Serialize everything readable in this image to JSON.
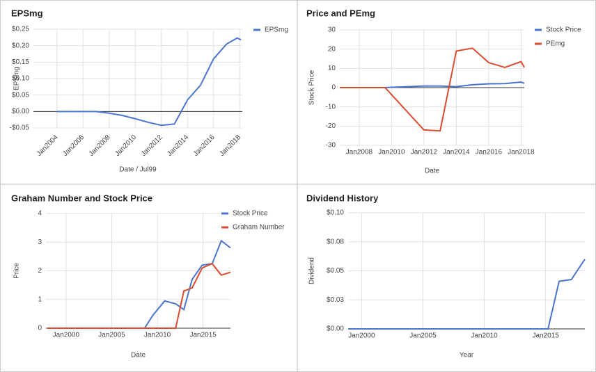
{
  "chart_data": [
    {
      "type": "line",
      "title": "EPSmg",
      "x_label": "Date / Jul99",
      "y_label": "EPSmg",
      "x": [
        2004,
        2005,
        2006,
        2007,
        2008,
        2009,
        2010,
        2011,
        2012,
        2013,
        2014,
        2015,
        2016,
        2017,
        2017.8,
        2018.1
      ],
      "series": [
        {
          "name": "EPSmg",
          "color": "#4a74d0",
          "values": [
            0,
            0,
            0,
            0,
            -0.005,
            -0.012,
            -0.022,
            -0.033,
            -0.042,
            -0.038,
            0.035,
            0.08,
            0.16,
            0.205,
            0.223,
            0.218
          ]
        }
      ],
      "xlim": [
        2002.2,
        2018.2
      ],
      "ylim": [
        -0.05,
        0.25
      ],
      "xticks": [
        {
          "value": 2004,
          "label": "Jan2004"
        },
        {
          "value": 2006,
          "label": "Jan2006"
        },
        {
          "value": 2008,
          "label": "Jan2008"
        },
        {
          "value": 2010,
          "label": "Jan2010"
        },
        {
          "value": 2012,
          "label": "Jan2012"
        },
        {
          "value": 2014,
          "label": "Jan2014"
        },
        {
          "value": 2016,
          "label": "Jan2016"
        },
        {
          "value": 2018,
          "label": "Jan2018"
        }
      ],
      "yticks": [
        {
          "value": -0.05,
          "label": "-$0.05"
        },
        {
          "value": 0,
          "label": "$0.00"
        },
        {
          "value": 0.05,
          "label": "$0.05"
        },
        {
          "value": 0.1,
          "label": "$0.10"
        },
        {
          "value": 0.15,
          "label": "$0.15"
        },
        {
          "value": 0.2,
          "label": "$0.20"
        },
        {
          "value": 0.25,
          "label": "$0.25"
        }
      ],
      "grid": true,
      "legend": "right"
    },
    {
      "type": "line",
      "title": "Price and PEmg",
      "x_label": "Date",
      "y_label": "Stock Price",
      "x": [
        2006.8,
        2008,
        2009,
        2009.6,
        2012,
        2013,
        2014,
        2015,
        2016,
        2017,
        2018,
        2018.2
      ],
      "series": [
        {
          "name": "Stock Price",
          "color": "#4a74d0",
          "values": [
            0,
            0,
            0,
            0.05,
            0.8,
            0.8,
            0.5,
            1.5,
            2,
            2.1,
            2.9,
            2.2
          ]
        },
        {
          "name": "PEmg",
          "color": "#db4b2e",
          "values": [
            0,
            0,
            0,
            0,
            -22,
            -22.5,
            19,
            20.5,
            13,
            10.5,
            13.5,
            10.5
          ]
        }
      ],
      "xlim": [
        2006.8,
        2018.2
      ],
      "ylim": [
        -30,
        30
      ],
      "xticks": [
        {
          "value": 2008,
          "label": "Jan2008"
        },
        {
          "value": 2010,
          "label": "Jan2010"
        },
        {
          "value": 2012,
          "label": "Jan2012"
        },
        {
          "value": 2014,
          "label": "Jan2014"
        },
        {
          "value": 2016,
          "label": "Jan2016"
        },
        {
          "value": 2018,
          "label": "Jan2018"
        }
      ],
      "yticks": [
        -30,
        -20,
        -10,
        0,
        10,
        20,
        30
      ],
      "grid": true,
      "legend": "right"
    },
    {
      "type": "line",
      "title": "Graham Number and Stock Price",
      "x_label": "Date",
      "y_label": "Price",
      "x": [
        1998,
        2008.6,
        2009.5,
        2010.8,
        2012,
        2012.9,
        2013.8,
        2014.9,
        2016,
        2017,
        2018
      ],
      "series": [
        {
          "name": "Stock Price",
          "color": "#4a74d0",
          "values": [
            0,
            0,
            0.45,
            0.95,
            0.85,
            0.65,
            1.7,
            2.2,
            2.25,
            3.05,
            2.8
          ]
        },
        {
          "name": "Graham Number",
          "color": "#db4b2e",
          "values": [
            0,
            0,
            0,
            0,
            0,
            1.3,
            1.4,
            2.1,
            2.25,
            1.85,
            1.95
          ]
        }
      ],
      "xlim": [
        1997.8,
        2018
      ],
      "ylim": [
        0,
        4
      ],
      "xticks": [
        {
          "value": 2000,
          "label": "Jan2000"
        },
        {
          "value": 2005,
          "label": "Jan2005"
        },
        {
          "value": 2010,
          "label": "Jan2010"
        },
        {
          "value": 2015,
          "label": "Jan2015"
        }
      ],
      "yticks": [
        0,
        1,
        2,
        3,
        4
      ],
      "grid": true,
      "legend": "right"
    },
    {
      "type": "line",
      "title": "Dividend History",
      "x_label": "Year",
      "y_label": "Dividend",
      "x": [
        1998.9,
        2015.2,
        2016.1,
        2017.1,
        2018.2
      ],
      "series": [
        {
          "name": "Dividend",
          "color": "#4a74d0",
          "values": [
            0,
            0,
            0.041,
            0.0425,
            0.06
          ]
        }
      ],
      "xlim": [
        1998.9,
        2018.2
      ],
      "ylim": [
        0,
        0.1
      ],
      "xticks": [
        {
          "value": 2000,
          "label": "Jan2000"
        },
        {
          "value": 2005,
          "label": "Jan2005"
        },
        {
          "value": 2010,
          "label": "Jan2010"
        },
        {
          "value": 2015,
          "label": "Jan2015"
        }
      ],
      "yticks": [
        {
          "value": 0,
          "label": "$0.00"
        },
        {
          "value": 0.025,
          "label": "$0.03"
        },
        {
          "value": 0.05,
          "label": "$0.05"
        },
        {
          "value": 0.075,
          "label": "$0.08"
        },
        {
          "value": 0.1,
          "label": "$0.10"
        }
      ],
      "grid": true
    }
  ]
}
